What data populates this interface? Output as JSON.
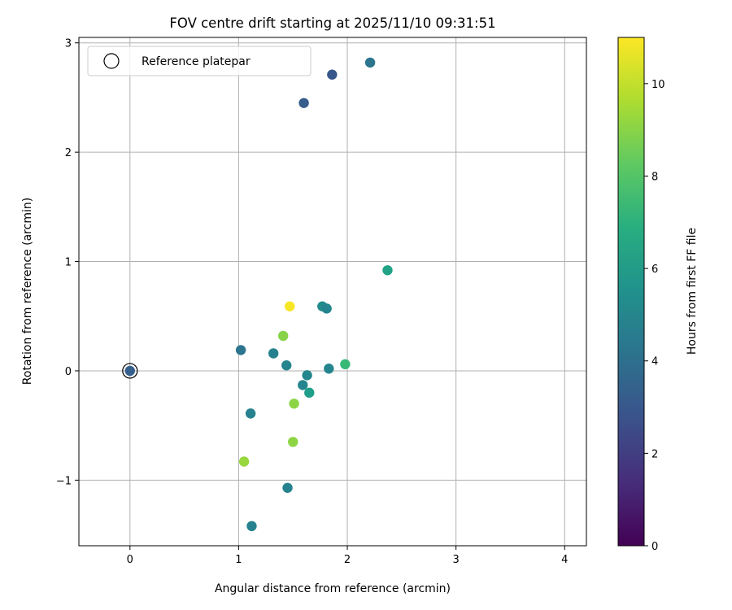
{
  "chart_data": {
    "type": "scatter",
    "title": "FOV centre drift starting at 2025/11/10 09:31:51",
    "xlabel": "Angular distance from reference (arcmin)",
    "ylabel": "Rotation from reference (arcmin)",
    "xlim": [
      -0.47,
      4.2
    ],
    "ylim": [
      -1.6,
      3.05
    ],
    "x_ticks": [
      0,
      1,
      2,
      3,
      4
    ],
    "y_ticks": [
      -1,
      0,
      1,
      2,
      3
    ],
    "x_tick_labels": [
      "0",
      "1",
      "2",
      "3",
      "4"
    ],
    "y_tick_labels": [
      "−1",
      "0",
      "1",
      "2",
      "3"
    ],
    "grid": true,
    "legend": {
      "placement": "top-left",
      "entries": [
        "Reference platepar"
      ]
    },
    "colorbar": {
      "label": "Hours from first FF file",
      "colormap": "viridis",
      "range": [
        0,
        11
      ],
      "ticks": [
        0,
        2,
        4,
        6,
        8,
        10
      ],
      "tick_labels": [
        "0",
        "2",
        "4",
        "6",
        "8",
        "10"
      ]
    },
    "reference_point": {
      "x": 0,
      "y": 0,
      "hours": 3.3
    },
    "points": [
      {
        "x": 2.21,
        "y": 2.82,
        "hours": 4.3
      },
      {
        "x": 1.86,
        "y": 2.71,
        "hours": 3.0
      },
      {
        "x": 1.6,
        "y": 2.45,
        "hours": 3.2
      },
      {
        "x": 2.37,
        "y": 0.92,
        "hours": 6.3
      },
      {
        "x": 1.47,
        "y": 0.59,
        "hours": 10.9
      },
      {
        "x": 1.77,
        "y": 0.59,
        "hours": 5.3
      },
      {
        "x": 1.81,
        "y": 0.57,
        "hours": 5.0
      },
      {
        "x": 1.41,
        "y": 0.32,
        "hours": 9.0
      },
      {
        "x": 1.02,
        "y": 0.19,
        "hours": 4.3
      },
      {
        "x": 1.32,
        "y": 0.16,
        "hours": 4.8
      },
      {
        "x": 1.44,
        "y": 0.05,
        "hours": 5.0
      },
      {
        "x": 1.83,
        "y": 0.02,
        "hours": 5.0
      },
      {
        "x": 1.98,
        "y": 0.06,
        "hours": 7.4
      },
      {
        "x": 1.63,
        "y": -0.04,
        "hours": 5.1
      },
      {
        "x": 1.59,
        "y": -0.13,
        "hours": 5.0
      },
      {
        "x": 1.65,
        "y": -0.2,
        "hours": 6.1
      },
      {
        "x": 1.51,
        "y": -0.3,
        "hours": 9.1
      },
      {
        "x": 1.11,
        "y": -0.39,
        "hours": 4.9
      },
      {
        "x": 1.5,
        "y": -0.65,
        "hours": 9.1
      },
      {
        "x": 1.05,
        "y": -0.83,
        "hours": 9.3
      },
      {
        "x": 1.45,
        "y": -1.07,
        "hours": 4.9
      },
      {
        "x": 1.12,
        "y": -1.42,
        "hours": 4.9
      }
    ]
  }
}
